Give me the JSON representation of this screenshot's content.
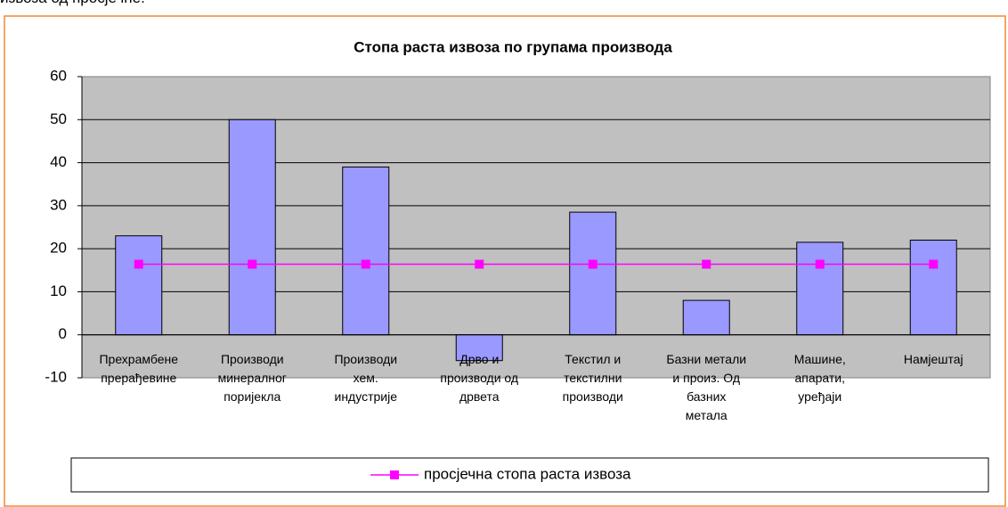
{
  "text": "извоза од просјечне.",
  "chart_data": {
    "type": "bar",
    "title": "Стопа раста извоза по групама производа",
    "categories": [
      "Прехрамбене\nпрерађевине",
      "Производи\nминералног\nпоријекла",
      "Производи\nхем.\nиндустрије",
      "Дрво и\nпроизводи од\nдрвета",
      "Текстил и\nтекстилни\nпроизводи",
      "Базни метали\nи произ. Од\nбазних\nметала",
      "Машине,\nапарати,\nуређаји",
      "Намјештај"
    ],
    "series": [
      {
        "color": "#9999ff",
        "values": [
          23,
          50,
          39,
          -6,
          28.5,
          8,
          21.5,
          22
        ]
      },
      {
        "name": "просјечна стопа раста извоза",
        "type": "line",
        "color": "#ff00ff",
        "values": [
          16.4,
          16.4,
          16.4,
          16.4,
          16.4,
          16.4,
          16.4,
          16.4
        ]
      }
    ],
    "ylim": [
      -10,
      60
    ],
    "yticks": [
      -10,
      0,
      10,
      20,
      30,
      40,
      50,
      60
    ],
    "grid": true,
    "legend": "bottom"
  }
}
